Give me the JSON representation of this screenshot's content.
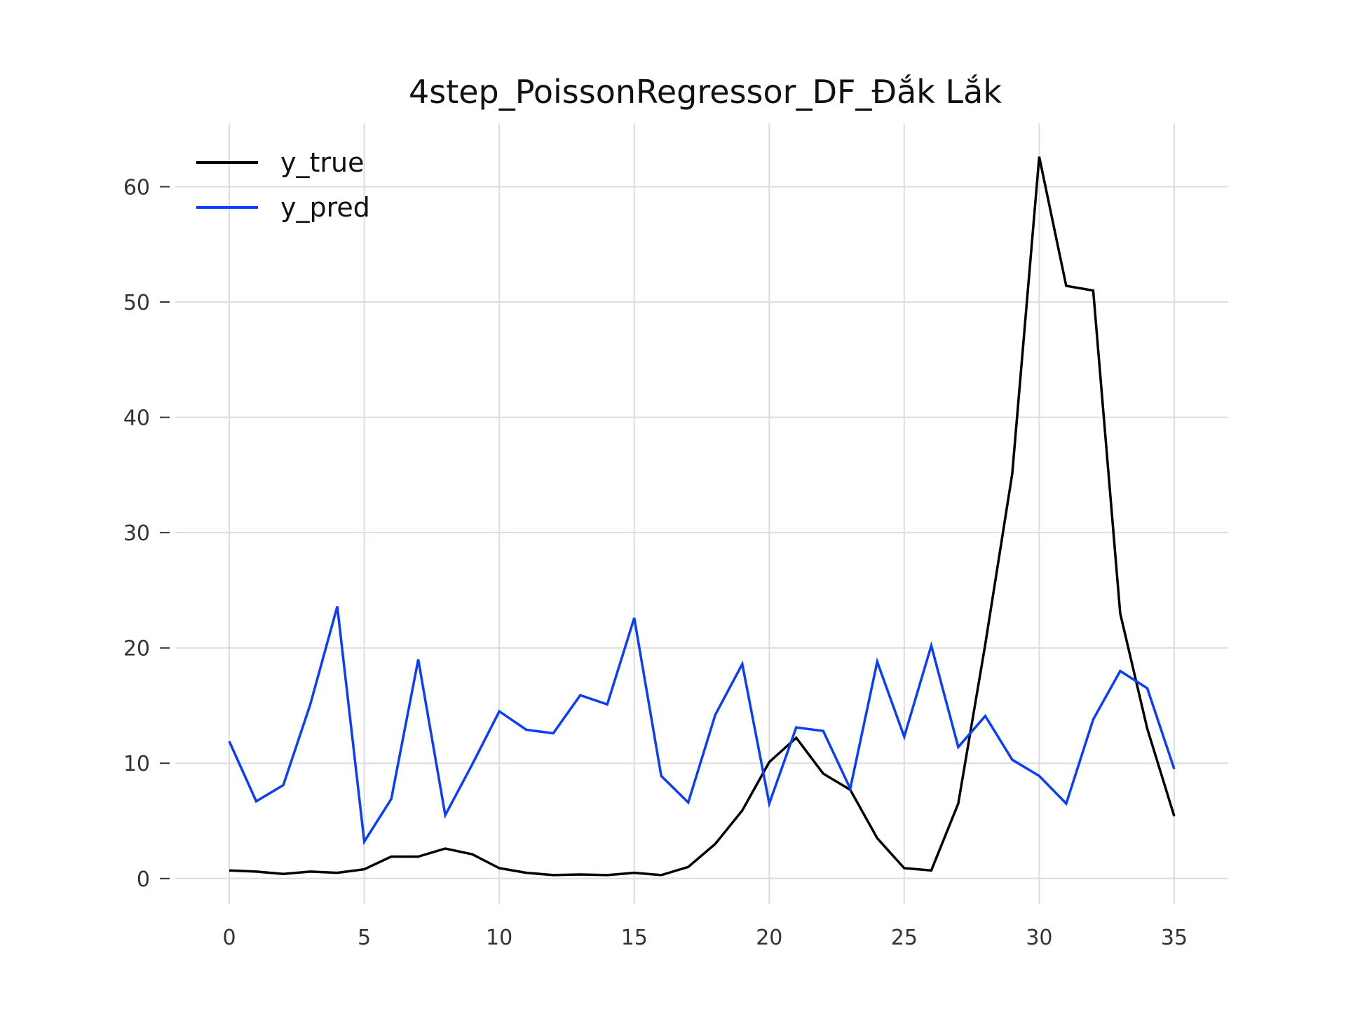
{
  "chart_data": {
    "type": "line",
    "title": "4step_PoissonRegressor_DF_Đắk Lắk",
    "xlabel": "",
    "ylabel": "",
    "x": [
      0,
      1,
      2,
      3,
      4,
      5,
      6,
      7,
      8,
      9,
      10,
      11,
      12,
      13,
      14,
      15,
      16,
      17,
      18,
      19,
      20,
      21,
      22,
      23,
      24,
      25,
      26,
      27,
      28,
      29,
      30,
      31,
      32,
      33,
      34,
      35
    ],
    "xlim": [
      -2,
      37
    ],
    "ylim": [
      -2.2,
      65.5
    ],
    "xticks": [
      0,
      5,
      10,
      15,
      20,
      25,
      30,
      35
    ],
    "yticks": [
      0,
      10,
      20,
      30,
      40,
      50,
      60
    ],
    "grid": true,
    "legend_position": "top-left",
    "series": [
      {
        "name": "y_true",
        "color": "#000000",
        "values": [
          0.7,
          0.6,
          0.4,
          0.6,
          0.5,
          0.8,
          1.9,
          1.9,
          2.6,
          2.1,
          0.9,
          0.5,
          0.3,
          0.35,
          0.3,
          0.5,
          0.3,
          1.0,
          3.0,
          5.9,
          10.1,
          12.2,
          9.1,
          7.7,
          3.5,
          0.9,
          0.7,
          6.5,
          20.3,
          35.1,
          62.6,
          51.4,
          51.0,
          23.0,
          13.0,
          5.4
        ]
      },
      {
        "name": "y_pred",
        "color": "#0a3dff",
        "values": [
          11.9,
          6.7,
          8.1,
          15.1,
          23.6,
          3.2,
          6.9,
          19.0,
          5.5,
          9.9,
          14.5,
          12.9,
          12.6,
          15.9,
          15.1,
          22.6,
          8.9,
          6.6,
          14.2,
          18.6,
          6.5,
          13.1,
          12.8,
          7.8,
          18.8,
          12.3,
          20.2,
          11.4,
          14.1,
          10.3,
          8.9,
          6.5,
          13.8,
          18.0,
          16.5,
          9.5
        ]
      }
    ]
  }
}
